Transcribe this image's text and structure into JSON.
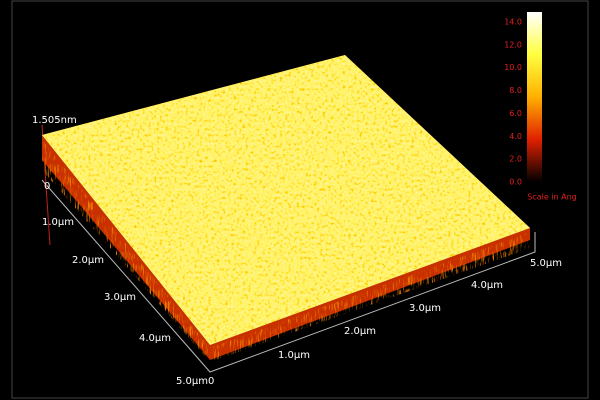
{
  "height_label": "1.505nm",
  "z_zero": "0",
  "left_axis": [
    "1.0μm",
    "2.0μm",
    "3.0μm",
    "4.0μm",
    "5.0μm0"
  ],
  "right_axis": [
    "1.0μm",
    "2.0μm",
    "3.0μm",
    "4.0μm",
    "5.0μm"
  ],
  "colorbar": {
    "ticks": [
      "14.0",
      "12.0",
      "10.0",
      "8.0",
      "6.0",
      "4.0",
      "2.0",
      "0.0"
    ],
    "label": "Scale in Ang"
  }
}
